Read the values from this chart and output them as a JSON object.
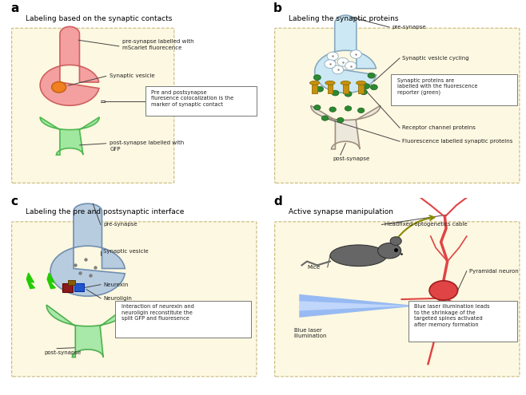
{
  "fig_width": 6.58,
  "fig_height": 4.95,
  "dpi": 100,
  "bg_color": "#ffffff",
  "panel_a": {
    "title": "Labeling based on the synaptic contacts",
    "box_bg": "#fdf8e1",
    "box_edge": "#c8b878",
    "pre_face": "#f4a0a0",
    "pre_edge": "#d06060",
    "post_face": "#a0e8a0",
    "post_edge": "#50b850",
    "vesicle_face": "#f08020",
    "vesicle_edge": "#c06010",
    "label_pre": "pre-synapse labelled with\nmScarlet fluorecence",
    "label_vesicle": "Synaptic vesicle",
    "label_post": "post-synapse labelled with\nGFP",
    "box_text": "Pre and postsynapse\nfluresence colocalization is the\nmarker of synaptic contact"
  },
  "panel_b": {
    "title": "Labeling the synaptic proteins",
    "box_bg": "#fdf8e1",
    "box_edge": "#c8b878",
    "pre_face": "#cce8f4",
    "pre_edge": "#88aac0",
    "post_face": "#ede8dc",
    "post_edge": "#a09080",
    "green": "#2a8a30",
    "green_edge": "#1a5a20",
    "gold": "#c89010",
    "gold_edge": "#907000",
    "label_pre": "pre-synapse",
    "label_cycling": "Synaptic vesicle cycling",
    "label_receptor": "Receptor channel proteins",
    "label_fluor": "Fluorescence labelled synaptic proteins",
    "label_post": "post-synapse",
    "box_text": "Synaptic proteins are\nlabelled with the fluorescence\nreporter (green)"
  },
  "panel_c": {
    "title": "Labeling the pre and postsynaptic interface",
    "box_bg": "#fdf8e1",
    "box_edge": "#c8b878",
    "pre_face": "#b8cce0",
    "pre_edge": "#7090b0",
    "post_face": "#a8e8a8",
    "post_edge": "#50b050",
    "lightning": "#22cc00",
    "label_pre": "pre-synapse",
    "label_vesicle": "Synaptic vesicle",
    "label_neurexin": "Neurexin",
    "label_neuroligin": "Neuroligin",
    "label_post": "post-synapse",
    "box_text": "Interaction of neurexin and\nneuroligin reconstitute the\nsplit GFP and fluoresence"
  },
  "panel_d": {
    "title": "Active synapse manipulation",
    "box_bg": "#fdf8e1",
    "box_edge": "#c8b878",
    "neuron_face": "#e04444",
    "neuron_edge": "#a02020",
    "mouse_face": "#666666",
    "mouse_edge": "#333333",
    "laser_color": "#4488ff",
    "label_cable": "Headfixed optogenetics cable",
    "label_mice": "Mice",
    "label_pyramidal": "Pyramidal neuron",
    "label_laser": "Blue laser\nillumination",
    "box_text": "Blue laser illumination leads\nto the shrinkage of the\ntargeted spines activated\nafter memory formation"
  }
}
